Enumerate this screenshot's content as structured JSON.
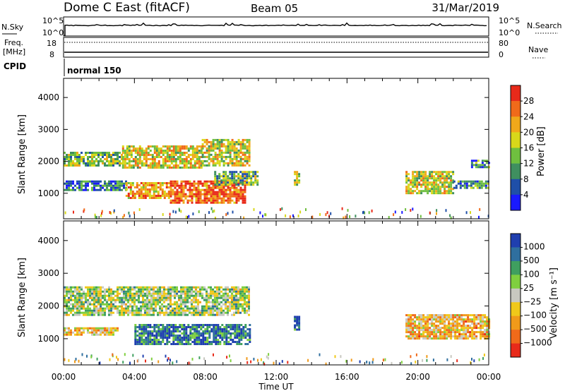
{
  "header": {
    "title": "Dome C East (fitACF)",
    "beam": "Beam 05",
    "date": "31/Mar/2019"
  },
  "control_panel": {
    "nsky_label": "N.Sky",
    "nsearch_label": "N.Search",
    "power_ticks_left": [
      "10^5",
      "10^0"
    ],
    "power_ticks_right": [
      "10^5",
      "10^0"
    ],
    "freq_label_line1": "Freq.",
    "freq_label_line2": "[MHz]",
    "freq_ticks": [
      "18",
      "8"
    ],
    "nave_label": "Nave",
    "nave_ticks": [
      "80",
      "0"
    ],
    "cpid_label": "CPID",
    "cpid_value": "normal 150"
  },
  "colors": {
    "power_scale": [
      "#1a1aff",
      "#1f4fa8",
      "#3f8f5f",
      "#6fbf3f",
      "#d8d81a",
      "#f0a81a",
      "#f06a1a",
      "#e82a1a"
    ],
    "velocity_scale": [
      "#1f3faf",
      "#2f6f9f",
      "#3f9f5f",
      "#7fcf3f",
      "#c8c8c0",
      "#f0c81a",
      "#f09a1a",
      "#f06a1a",
      "#e82a1a"
    ]
  },
  "chart_data": [
    {
      "type": "heatmap",
      "name": "power-panel",
      "ylabel": "Slant Range [km]",
      "ylim": [
        200,
        4600
      ],
      "xlim_hours": [
        0,
        24
      ],
      "yticks": [
        "1000",
        "2000",
        "3000",
        "4000"
      ],
      "colorbar_label": "Power [dB]",
      "colorbar_ticks": [
        "4",
        "8",
        "12",
        "16",
        "20",
        "24",
        "28"
      ],
      "colorbar_range": [
        0,
        32
      ],
      "regions": [
        {
          "t0": 0.0,
          "t1": 3.3,
          "r0": 1850,
          "r1": 2300,
          "level": 0.45
        },
        {
          "t0": 3.3,
          "t1": 7.8,
          "r0": 1800,
          "r1": 2500,
          "level": 0.6
        },
        {
          "t0": 7.8,
          "t1": 10.5,
          "r0": 1900,
          "r1": 2700,
          "level": 0.55
        },
        {
          "t0": 0.0,
          "t1": 3.5,
          "r0": 1100,
          "r1": 1400,
          "level": 0.25
        },
        {
          "t0": 3.5,
          "t1": 6.0,
          "r0": 850,
          "r1": 1350,
          "level": 0.7
        },
        {
          "t0": 6.0,
          "t1": 10.3,
          "r0": 700,
          "r1": 1400,
          "level": 0.85
        },
        {
          "t0": 8.5,
          "t1": 11.0,
          "r0": 1300,
          "r1": 1700,
          "level": 0.4
        },
        {
          "t0": 13.0,
          "t1": 13.3,
          "r0": 1300,
          "r1": 1700,
          "level": 0.5
        },
        {
          "t0": 19.3,
          "t1": 22.0,
          "r0": 1000,
          "r1": 1700,
          "level": 0.55
        },
        {
          "t0": 22.0,
          "t1": 24.0,
          "r0": 1150,
          "r1": 1400,
          "level": 0.35
        },
        {
          "t0": 23.0,
          "t1": 24.0,
          "r0": 1850,
          "r1": 2050,
          "level": 0.3
        }
      ]
    },
    {
      "type": "heatmap",
      "name": "velocity-panel",
      "ylabel": "Slant Range [km]",
      "ylim": [
        200,
        4600
      ],
      "xlim_hours": [
        0,
        24
      ],
      "yticks": [
        "1000",
        "2000",
        "3000",
        "4000"
      ],
      "xticks": [
        "00:00",
        "04:00",
        "08:00",
        "12:00",
        "16:00",
        "20:00",
        "00:00"
      ],
      "xlabel": "Time UT",
      "colorbar_label": "Velocity [m s⁻¹]",
      "colorbar_ticks": [
        "1000",
        "500",
        "100",
        "25",
        "−25",
        "−100",
        "−500",
        "−1000"
      ],
      "regions": [
        {
          "t0": 0.0,
          "t1": 10.5,
          "r0": 1750,
          "r1": 2600,
          "level": 0.45
        },
        {
          "t0": 4.0,
          "t1": 10.5,
          "r0": 850,
          "r1": 1450,
          "level": 0.15
        },
        {
          "t0": 0.0,
          "t1": 3.0,
          "r0": 1150,
          "r1": 1350,
          "level": 0.6
        },
        {
          "t0": 13.0,
          "t1": 13.3,
          "r0": 1250,
          "r1": 1700,
          "level": 0.15
        },
        {
          "t0": 19.3,
          "t1": 24.0,
          "r0": 1000,
          "r1": 1750,
          "level": 0.65
        }
      ]
    }
  ]
}
